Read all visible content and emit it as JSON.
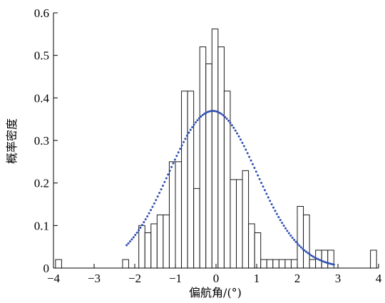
{
  "chart_data": {
    "type": "bar",
    "xlabel": "偏航角/(°)",
    "ylabel": "概率密度",
    "xlim": [
      -4,
      4
    ],
    "ylim": [
      0,
      0.6
    ],
    "xticks": [
      "−4",
      "−3",
      "−2",
      "−1",
      "0",
      "1",
      "2",
      "3",
      "4"
    ],
    "yticks": [
      "0",
      "0.1",
      "0.2",
      "0.3",
      "0.4",
      "0.5",
      "0.6"
    ],
    "grid": false,
    "legend": "none",
    "bin_width": 0.15,
    "bins": [
      {
        "x0": -3.95,
        "value": 0.02
      },
      {
        "x0": -2.3,
        "value": 0.02
      },
      {
        "x0": -1.9,
        "value": 0.1
      },
      {
        "x0": -1.75,
        "value": 0.083
      },
      {
        "x0": -1.6,
        "value": 0.104
      },
      {
        "x0": -1.45,
        "value": 0.125
      },
      {
        "x0": -1.3,
        "value": 0.125
      },
      {
        "x0": -1.15,
        "value": 0.25
      },
      {
        "x0": -1.0,
        "value": 0.25
      },
      {
        "x0": -0.85,
        "value": 0.416
      },
      {
        "x0": -0.7,
        "value": 0.416
      },
      {
        "x0": -0.55,
        "value": 0.187
      },
      {
        "x0": -0.4,
        "value": 0.52
      },
      {
        "x0": -0.25,
        "value": 0.48
      },
      {
        "x0": -0.1,
        "value": 0.562
      },
      {
        "x0": 0.05,
        "value": 0.52
      },
      {
        "x0": 0.2,
        "value": 0.416
      },
      {
        "x0": 0.35,
        "value": 0.208
      },
      {
        "x0": 0.5,
        "value": 0.208
      },
      {
        "x0": 0.65,
        "value": 0.229
      },
      {
        "x0": 0.8,
        "value": 0.104
      },
      {
        "x0": 0.95,
        "value": 0.083
      },
      {
        "x0": 1.1,
        "value": 0.02
      },
      {
        "x0": 1.25,
        "value": 0.02
      },
      {
        "x0": 1.4,
        "value": 0.02
      },
      {
        "x0": 1.55,
        "value": 0.02
      },
      {
        "x0": 1.7,
        "value": 0.02
      },
      {
        "x0": 1.85,
        "value": 0.02
      },
      {
        "x0": 2.0,
        "value": 0.145
      },
      {
        "x0": 2.15,
        "value": 0.125
      },
      {
        "x0": 2.3,
        "value": 0.02
      },
      {
        "x0": 2.45,
        "value": 0.042
      },
      {
        "x0": 2.6,
        "value": 0.042
      },
      {
        "x0": 2.75,
        "value": 0.042
      },
      {
        "x0": 3.8,
        "value": 0.042
      }
    ],
    "fit_curve": {
      "type": "normal_pdf",
      "mean": -0.08,
      "std": 1.08,
      "x_range": [
        -2.2,
        2.9
      ],
      "color": "#2f4fb0"
    }
  }
}
